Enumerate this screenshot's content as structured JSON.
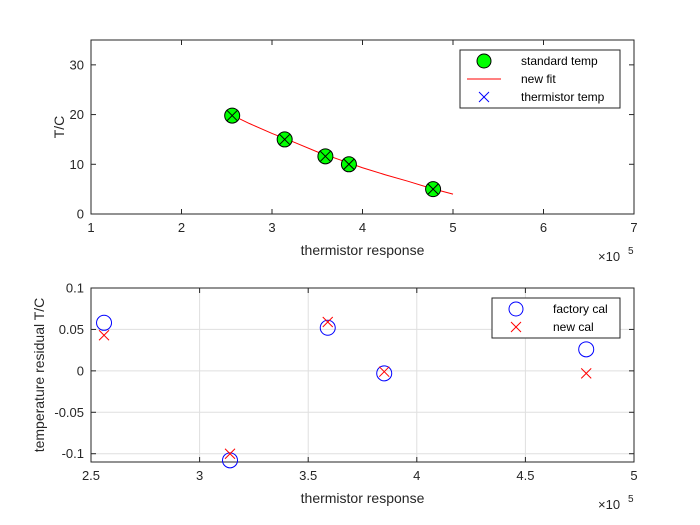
{
  "chart_data": [
    {
      "type": "scatter",
      "title": "",
      "xlabel": "thermistor response",
      "ylabel": "T/C",
      "x_exponent_label": "×10",
      "x_exponent": "5",
      "xlim": [
        1,
        7
      ],
      "ylim": [
        0,
        35
      ],
      "xticks": [
        1,
        2,
        3,
        4,
        5,
        6,
        7
      ],
      "yticks": [
        0,
        10,
        20,
        30
      ],
      "grid": false,
      "legend_position": "top-right",
      "legend": [
        "standard temp",
        "new fit",
        "thermistor temp"
      ],
      "series": [
        {
          "name": "standard temp",
          "marker": "filled-circle",
          "color": "#00ff00",
          "edge": "#000000",
          "x": [
            2.56,
            3.14,
            3.59,
            3.85,
            4.78
          ],
          "y": [
            19.8,
            15.0,
            11.6,
            10.0,
            5.0
          ]
        },
        {
          "name": "new fit",
          "marker": "line",
          "color": "#ff0000",
          "x": [
            2.5,
            2.75,
            3.0,
            3.25,
            3.5,
            3.75,
            4.0,
            4.25,
            4.5,
            4.75,
            5.0
          ],
          "y": [
            20.4,
            18.2,
            16.2,
            14.4,
            12.5,
            10.9,
            9.3,
            7.9,
            6.6,
            5.2,
            4.0
          ]
        },
        {
          "name": "thermistor temp",
          "marker": "x",
          "color": "#0000ff",
          "x": [
            2.56,
            3.14,
            3.59,
            3.85,
            4.78
          ],
          "y": [
            19.8,
            15.0,
            11.6,
            10.0,
            5.0
          ]
        }
      ]
    },
    {
      "type": "scatter",
      "title": "",
      "xlabel": "thermistor response",
      "ylabel": "temperature residual T/C",
      "x_exponent_label": "×10",
      "x_exponent": "5",
      "xlim": [
        2.5,
        5
      ],
      "ylim": [
        -0.11,
        0.1
      ],
      "xticks": [
        2.5,
        3,
        3.5,
        4,
        4.5,
        5
      ],
      "yticks": [
        -0.1,
        -0.05,
        0,
        0.05,
        0.1
      ],
      "grid": true,
      "legend_position": "top-right",
      "legend": [
        "factory cal",
        "new cal"
      ],
      "series": [
        {
          "name": "factory cal",
          "marker": "circle",
          "color": "#0000ff",
          "x": [
            2.56,
            3.14,
            3.59,
            3.85,
            4.78
          ],
          "y": [
            0.058,
            -0.108,
            0.052,
            -0.003,
            0.026
          ]
        },
        {
          "name": "new cal",
          "marker": "x",
          "color": "#ff0000",
          "x": [
            2.56,
            3.14,
            3.59,
            3.85,
            4.78
          ],
          "y": [
            0.043,
            -0.1,
            0.059,
            -0.001,
            -0.003
          ]
        }
      ]
    }
  ]
}
